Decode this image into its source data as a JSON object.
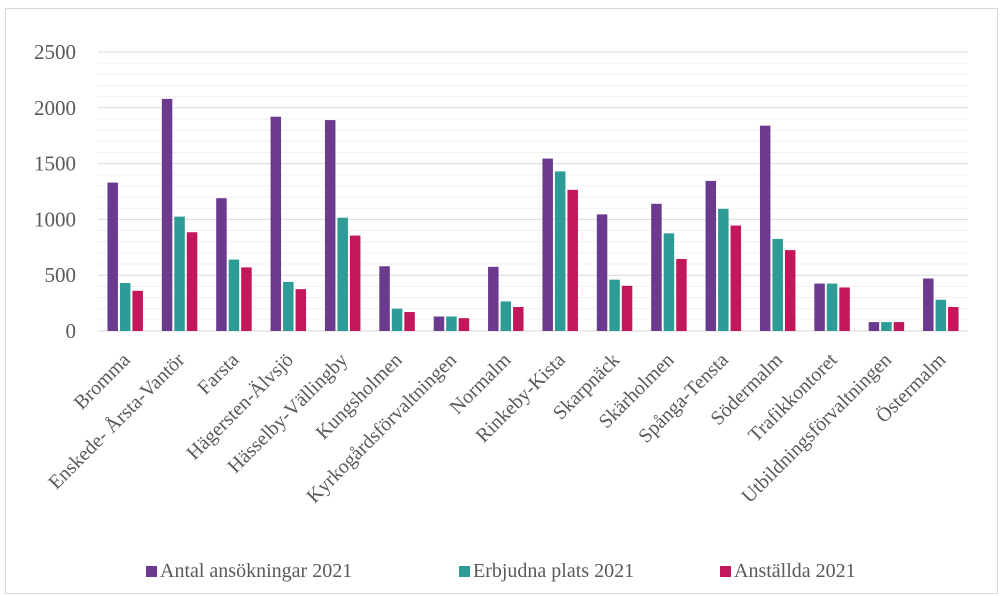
{
  "chart_data": {
    "type": "bar",
    "categories": [
      "Bromma",
      "Enskede- Årsta-Vantör",
      "Farsta",
      "Hägersten-Älvsjö",
      "Hässelby-Vällingby",
      "Kungsholmen",
      "Kyrkogårdsförvaltningen",
      "Normalm",
      "Rinkeby-Kista",
      "Skarpnäck",
      "Skärholmen",
      "Spånga-Tensta",
      "Södermalm",
      "Trafikkontoret",
      "Utbildningsförvaltningen",
      "Östermalm"
    ],
    "series": [
      {
        "name": "Antal ansökningar 2021",
        "color": "#6b3a8e",
        "values": [
          1330,
          2080,
          1190,
          1920,
          1890,
          580,
          130,
          575,
          1545,
          1045,
          1140,
          1345,
          1840,
          425,
          80,
          470
        ]
      },
      {
        "name": "Erbjudna plats 2021",
        "color": "#2e9c96",
        "values": [
          430,
          1025,
          640,
          440,
          1015,
          200,
          130,
          265,
          1430,
          460,
          875,
          1095,
          825,
          425,
          80,
          280
        ]
      },
      {
        "name": "Anställda 2021",
        "color": "#c2185b",
        "values": [
          360,
          885,
          570,
          375,
          855,
          170,
          115,
          215,
          1265,
          405,
          645,
          945,
          725,
          390,
          80,
          215
        ]
      }
    ],
    "yticks": [
      "0",
      "500",
      "1000",
      "1500",
      "2000",
      "2500"
    ],
    "ylim": [
      0,
      2500
    ],
    "minor_grid_step": 100,
    "grid": true,
    "legend_position": "bottom"
  }
}
